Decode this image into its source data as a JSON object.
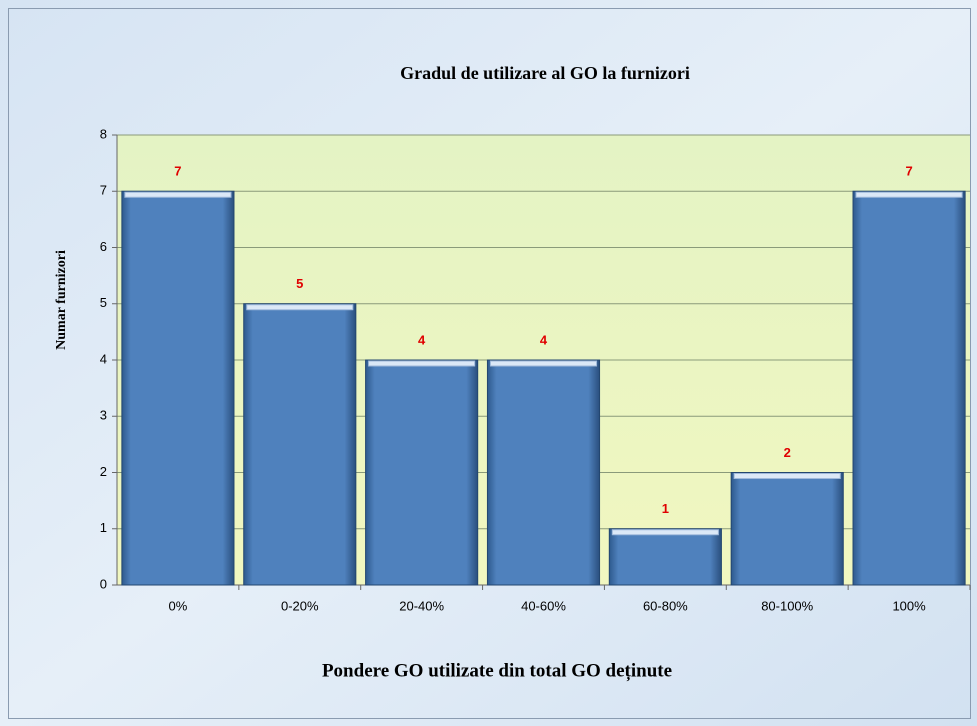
{
  "chart_data": {
    "type": "bar",
    "title": "Gradul de utilizare al GO la furnizori",
    "x_label": "Pondere GO utilizate din total GO deținute",
    "y_label": "Numar furnizori",
    "categories": [
      "0%",
      "0-20%",
      "20-40%",
      "40-60%",
      "60-80%",
      "80-100%",
      "100%"
    ],
    "values": [
      7,
      5,
      4,
      4,
      1,
      2,
      7
    ],
    "color": "#4f81bd",
    "label_color": "#e00000",
    "ylim": [
      0,
      8
    ],
    "yticks": [
      0,
      1,
      2,
      3,
      4,
      5,
      6,
      7,
      8
    ],
    "grid": true
  }
}
